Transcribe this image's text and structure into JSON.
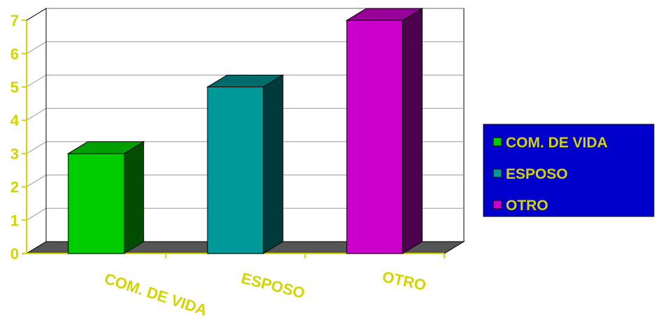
{
  "chart_data": {
    "type": "bar",
    "style": "3d",
    "categories": [
      "COM. DE  VIDA",
      "ESPOSO",
      "OTRO"
    ],
    "values": [
      3,
      5,
      7
    ],
    "ylim": [
      0,
      7
    ],
    "yticks": [
      "0",
      "1",
      "2",
      "3",
      "4",
      "5",
      "6",
      "7"
    ],
    "grid": true,
    "legend_position": "right",
    "legend": [
      {
        "label": "COM. DE  VIDA",
        "color": "#00cc00"
      },
      {
        "label": "ESPOSO",
        "color": "#009999"
      },
      {
        "label": "OTRO",
        "color": "#cc00cc"
      }
    ],
    "colors": {
      "bar_front": [
        "#00cc00",
        "#009999",
        "#cc00cc"
      ],
      "bar_top": [
        "#00a000",
        "#006b6b",
        "#990099"
      ],
      "bar_side": [
        "#004d00",
        "#003a3a",
        "#4d004d"
      ],
      "floor": "#555555",
      "legend_bg": "#0000cc",
      "text": "#d4d400"
    }
  }
}
